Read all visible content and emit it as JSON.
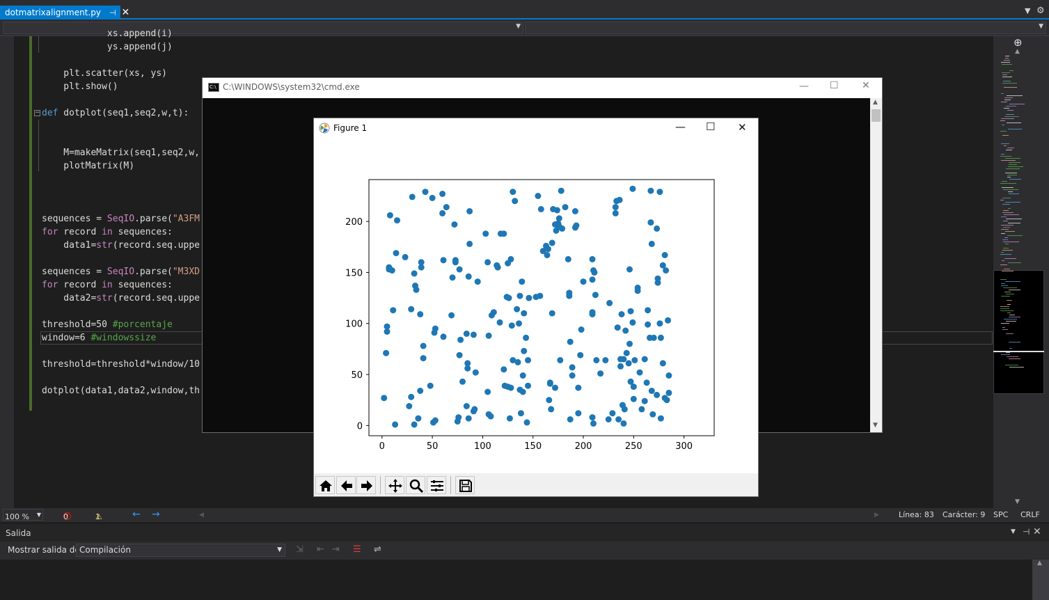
{
  "tabs": {
    "active_file": "dotmatrixalignment.py",
    "pin_glyph": "⊣",
    "close_glyph": "✕"
  },
  "code": {
    "lines": [
      {
        "row": 0,
        "text": "            xs.append(i)"
      },
      {
        "row": 1,
        "text": "            ys.append(j)"
      },
      {
        "row": 3,
        "text": "    plt.scatter(xs, ys)"
      },
      {
        "row": 4,
        "text": "    plt.show()"
      },
      {
        "row": 6,
        "text": "def dotplot(seq1,seq2,w,t):"
      },
      {
        "row": 9,
        "text": "    M=makeMatrix(seq1,seq2,w,"
      },
      {
        "row": 10,
        "text": "    plotMatrix(M)"
      },
      {
        "row": 14,
        "text": "sequences = SeqIO.parse(\"A3FM"
      },
      {
        "row": 15,
        "text": "for record in sequences:"
      },
      {
        "row": 16,
        "text": "    data1=str(record.seq.uppe"
      },
      {
        "row": 18,
        "text": "sequences = SeqIO.parse(\"M3XD"
      },
      {
        "row": 19,
        "text": "for record in sequences:"
      },
      {
        "row": 20,
        "text": "    data2=str(record.seq.uppe"
      },
      {
        "row": 22,
        "text": "threshold=50 #porcentaje"
      },
      {
        "row": 23,
        "text": "window=6 #windowssize"
      },
      {
        "row": 25,
        "text": "threshold=threshold*window/10"
      },
      {
        "row": 27,
        "text": "dotplot(data1,data2,window,th"
      }
    ]
  },
  "editor_status": {
    "zoom": "100 %",
    "errors": "0",
    "warnings": "1",
    "line": "Línea: 83",
    "char": "Carácter: 9",
    "spc": "SPC",
    "eol": "CRLF"
  },
  "output": {
    "title": "Salida",
    "show_from_label": "Mostrar salida de:",
    "show_from_value": "Compilación"
  },
  "cmd": {
    "title": "C:\\WINDOWS\\system32\\cmd.exe",
    "icon_text": "C:\\"
  },
  "figure": {
    "title": "Figure 1",
    "toolbar": [
      "home-icon",
      "back-arrow-icon",
      "forward-arrow-icon",
      "pan-icon",
      "zoom-icon",
      "configure-subplots-icon",
      "save-icon"
    ]
  },
  "chart_data": {
    "type": "scatter",
    "title": "",
    "xlabel": "",
    "ylabel": "",
    "xlim": [
      -13,
      330
    ],
    "ylim": [
      -10,
      241
    ],
    "xticks": [
      0,
      50,
      100,
      150,
      200,
      250,
      300
    ],
    "yticks": [
      0,
      50,
      100,
      150,
      200
    ],
    "color": "#1f77b4",
    "grid": false,
    "series": [
      {
        "points": [
          [
            2,
            27
          ],
          [
            4,
            71
          ],
          [
            5,
            97
          ],
          [
            5,
            92
          ],
          [
            7,
            155
          ],
          [
            7,
            153
          ],
          [
            8,
            206
          ],
          [
            10,
            152
          ],
          [
            11,
            113
          ],
          [
            13,
            1
          ],
          [
            14,
            169
          ],
          [
            15,
            201
          ],
          [
            23,
            165
          ],
          [
            27,
            19
          ],
          [
            29,
            114
          ],
          [
            29,
            28
          ],
          [
            30,
            224
          ],
          [
            32,
            1
          ],
          [
            32,
            149
          ],
          [
            33,
            137
          ],
          [
            34,
            133
          ],
          [
            36,
            7
          ],
          [
            38,
            109
          ],
          [
            38,
            34
          ],
          [
            39,
            155
          ],
          [
            39,
            160
          ],
          [
            41,
            66
          ],
          [
            41,
            78
          ],
          [
            43,
            229
          ],
          [
            48,
            39
          ],
          [
            50,
            223
          ],
          [
            51,
            3
          ],
          [
            52,
            91
          ],
          [
            53,
            5
          ],
          [
            53,
            95
          ],
          [
            60,
            208
          ],
          [
            60,
            227
          ],
          [
            61,
            87
          ],
          [
            61,
            162
          ],
          [
            64,
            214
          ],
          [
            69,
            108
          ],
          [
            70,
            145
          ],
          [
            72,
            197
          ],
          [
            73,
            160
          ],
          [
            73,
            162
          ],
          [
            75,
            4
          ],
          [
            76,
            8
          ],
          [
            77,
            153
          ],
          [
            77,
            69
          ],
          [
            78,
            84
          ],
          [
            80,
            43
          ],
          [
            84,
            90
          ],
          [
            84,
            19
          ],
          [
            85,
            61
          ],
          [
            85,
            56
          ],
          [
            86,
            7
          ],
          [
            86,
            146
          ],
          [
            87,
            178
          ],
          [
            87,
            210
          ],
          [
            91,
            14
          ],
          [
            91,
            89
          ],
          [
            92,
            16
          ],
          [
            93,
            52
          ],
          [
            95,
            141
          ],
          [
            103,
            188
          ],
          [
            105,
            33
          ],
          [
            105,
            160
          ],
          [
            106,
            88
          ],
          [
            106,
            11
          ],
          [
            108,
            9
          ],
          [
            109,
            108
          ],
          [
            111,
            111
          ],
          [
            114,
            157
          ],
          [
            115,
            155
          ],
          [
            117,
            101
          ],
          [
            118,
            188
          ],
          [
            121,
            188
          ],
          [
            121,
            55
          ],
          [
            122,
            39
          ],
          [
            124,
            126
          ],
          [
            125,
            159
          ],
          [
            125,
            38
          ],
          [
            126,
            125
          ],
          [
            127,
            7
          ],
          [
            128,
            163
          ],
          [
            128,
            37
          ],
          [
            129,
            98
          ],
          [
            130,
            64
          ],
          [
            130,
            229
          ],
          [
            132,
            220
          ],
          [
            134,
            114
          ],
          [
            135,
            62
          ],
          [
            136,
            100
          ],
          [
            137,
            35
          ],
          [
            137,
            127
          ],
          [
            138,
            12
          ],
          [
            139,
            141
          ],
          [
            140,
            49
          ],
          [
            140,
            33
          ],
          [
            141,
            73
          ],
          [
            141,
            110
          ],
          [
            143,
            86
          ],
          [
            144,
            3
          ],
          [
            145,
            64
          ],
          [
            145,
            39
          ],
          [
            146,
            125
          ],
          [
            153,
            126
          ],
          [
            155,
            225
          ],
          [
            157,
            127
          ],
          [
            158,
            212
          ],
          [
            160,
            171
          ],
          [
            163,
            176
          ],
          [
            164,
            167
          ],
          [
            165,
            173
          ],
          [
            166,
            25
          ],
          [
            167,
            41
          ],
          [
            167,
            42
          ],
          [
            168,
            16
          ],
          [
            169,
            110
          ],
          [
            169,
            179
          ],
          [
            170,
            212
          ],
          [
            172,
            37
          ],
          [
            172,
            197
          ],
          [
            173,
            191
          ],
          [
            174,
            211
          ],
          [
            175,
            198
          ],
          [
            176,
            203
          ],
          [
            176,
            195
          ],
          [
            177,
            64
          ],
          [
            178,
            230
          ],
          [
            179,
            193
          ],
          [
            182,
            214
          ],
          [
            185,
            163
          ],
          [
            186,
            130
          ],
          [
            186,
            127
          ],
          [
            187,
            82
          ],
          [
            187,
            6
          ],
          [
            189,
            57
          ],
          [
            189,
            49
          ],
          [
            192,
            210
          ],
          [
            192,
            194
          ],
          [
            193,
            196
          ],
          [
            195,
            12
          ],
          [
            195,
            37
          ],
          [
            197,
            69
          ],
          [
            198,
            94
          ],
          [
            200,
            141
          ],
          [
            209,
            143
          ],
          [
            209,
            8
          ],
          [
            209,
            163
          ],
          [
            209,
            109
          ],
          [
            209,
            111
          ],
          [
            210,
            2
          ],
          [
            210,
            152
          ],
          [
            211,
            150
          ],
          [
            212,
            128
          ],
          [
            213,
            64
          ],
          [
            217,
            51
          ],
          [
            222,
            64
          ],
          [
            225,
            6
          ],
          [
            226,
            120
          ],
          [
            229,
            12
          ],
          [
            232,
            208
          ],
          [
            232,
            214
          ],
          [
            233,
            220
          ],
          [
            234,
            96
          ],
          [
            235,
            6
          ],
          [
            236,
            221
          ],
          [
            237,
            58
          ],
          [
            237,
            65
          ],
          [
            238,
            109
          ],
          [
            239,
            20
          ],
          [
            240,
            2
          ],
          [
            240,
            65
          ],
          [
            241,
            16
          ],
          [
            242,
            93
          ],
          [
            243,
            71
          ],
          [
            245,
            61
          ],
          [
            246,
            153
          ],
          [
            246,
            80
          ],
          [
            247,
            112
          ],
          [
            247,
            43
          ],
          [
            249,
            101
          ],
          [
            249,
            232
          ],
          [
            250,
            38
          ],
          [
            250,
            26
          ],
          [
            251,
            64
          ],
          [
            254,
            132
          ],
          [
            254,
            135
          ],
          [
            256,
            52
          ],
          [
            258,
            16
          ],
          [
            261,
            65
          ],
          [
            261,
            24
          ],
          [
            263,
            42
          ],
          [
            264,
            113
          ],
          [
            264,
            99
          ],
          [
            266,
            86
          ],
          [
            267,
            199
          ],
          [
            267,
            230
          ],
          [
            268,
            178
          ],
          [
            268,
            34
          ],
          [
            269,
            11
          ],
          [
            270,
            86
          ],
          [
            273,
            193
          ],
          [
            273,
            30
          ],
          [
            274,
            140
          ],
          [
            274,
            144
          ],
          [
            276,
            229
          ],
          [
            276,
            100
          ],
          [
            277,
            86
          ],
          [
            277,
            7
          ],
          [
            279,
            157
          ],
          [
            279,
            61
          ],
          [
            281,
            167
          ],
          [
            281,
            27
          ],
          [
            282,
            152
          ],
          [
            283,
            25
          ],
          [
            284,
            103
          ],
          [
            285,
            32
          ],
          [
            285,
            49
          ]
        ]
      }
    ]
  }
}
